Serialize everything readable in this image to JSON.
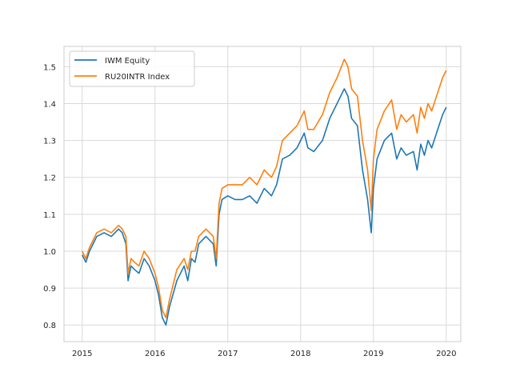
{
  "chart_data": {
    "type": "line",
    "title": "",
    "xlabel": "",
    "ylabel": "",
    "xlim": [
      2014.75,
      2020.2
    ],
    "ylim": [
      0.755,
      1.555
    ],
    "grid": true,
    "legend_position": "upper-left",
    "x_ticks": [
      {
        "value": 2015,
        "label": "2015"
      },
      {
        "value": 2016,
        "label": "2016"
      },
      {
        "value": 2017,
        "label": "2017"
      },
      {
        "value": 2018,
        "label": "2018"
      },
      {
        "value": 2019,
        "label": "2019"
      },
      {
        "value": 2020,
        "label": "2020"
      }
    ],
    "y_ticks": [
      {
        "value": 0.8,
        "label": "0.8"
      },
      {
        "value": 0.9,
        "label": "0.9"
      },
      {
        "value": 1.0,
        "label": "1.0"
      },
      {
        "value": 1.1,
        "label": "1.1"
      },
      {
        "value": 1.2,
        "label": "1.2"
      },
      {
        "value": 1.3,
        "label": "1.3"
      },
      {
        "value": 1.4,
        "label": "1.4"
      },
      {
        "value": 1.5,
        "label": "1.5"
      }
    ],
    "series": [
      {
        "name": "IWM Equity",
        "color": "#1f77b4",
        "x": [
          2015.0,
          2015.05,
          2015.1,
          2015.2,
          2015.3,
          2015.4,
          2015.5,
          2015.55,
          2015.6,
          2015.63,
          2015.67,
          2015.72,
          2015.78,
          2015.85,
          2015.92,
          2016.0,
          2016.05,
          2016.1,
          2016.15,
          2016.2,
          2016.3,
          2016.4,
          2016.45,
          2016.5,
          2016.55,
          2016.6,
          2016.7,
          2016.8,
          2016.84,
          2016.88,
          2016.92,
          2017.0,
          2017.1,
          2017.2,
          2017.3,
          2017.4,
          2017.5,
          2017.6,
          2017.67,
          2017.75,
          2017.85,
          2017.95,
          2018.05,
          2018.1,
          2018.18,
          2018.3,
          2018.4,
          2018.5,
          2018.6,
          2018.65,
          2018.7,
          2018.78,
          2018.85,
          2018.92,
          2018.97,
          2019.0,
          2019.05,
          2019.15,
          2019.25,
          2019.32,
          2019.38,
          2019.45,
          2019.55,
          2019.6,
          2019.65,
          2019.7,
          2019.75,
          2019.8,
          2019.85,
          2019.9,
          2019.95,
          2020.0
        ],
        "values": [
          0.99,
          0.97,
          1.0,
          1.04,
          1.05,
          1.04,
          1.06,
          1.05,
          1.02,
          0.92,
          0.96,
          0.95,
          0.94,
          0.98,
          0.96,
          0.92,
          0.88,
          0.82,
          0.8,
          0.85,
          0.92,
          0.96,
          0.92,
          0.98,
          0.97,
          1.02,
          1.04,
          1.02,
          0.96,
          1.1,
          1.14,
          1.15,
          1.14,
          1.14,
          1.15,
          1.13,
          1.17,
          1.15,
          1.18,
          1.25,
          1.26,
          1.28,
          1.32,
          1.28,
          1.27,
          1.3,
          1.36,
          1.4,
          1.44,
          1.42,
          1.36,
          1.34,
          1.22,
          1.14,
          1.05,
          1.17,
          1.25,
          1.3,
          1.32,
          1.25,
          1.28,
          1.26,
          1.27,
          1.22,
          1.29,
          1.26,
          1.3,
          1.28,
          1.31,
          1.34,
          1.37,
          1.39
        ]
      },
      {
        "name": "RU20INTR Index",
        "color": "#ff7f0e",
        "x": [
          2015.0,
          2015.05,
          2015.1,
          2015.2,
          2015.3,
          2015.4,
          2015.5,
          2015.55,
          2015.6,
          2015.63,
          2015.67,
          2015.72,
          2015.78,
          2015.85,
          2015.92,
          2016.0,
          2016.05,
          2016.1,
          2016.15,
          2016.2,
          2016.3,
          2016.4,
          2016.45,
          2016.5,
          2016.55,
          2016.6,
          2016.7,
          2016.8,
          2016.84,
          2016.88,
          2016.92,
          2017.0,
          2017.1,
          2017.2,
          2017.3,
          2017.4,
          2017.5,
          2017.6,
          2017.67,
          2017.75,
          2017.85,
          2017.95,
          2018.05,
          2018.1,
          2018.18,
          2018.3,
          2018.4,
          2018.5,
          2018.6,
          2018.65,
          2018.7,
          2018.78,
          2018.85,
          2018.92,
          2018.97,
          2019.0,
          2019.05,
          2019.15,
          2019.25,
          2019.32,
          2019.38,
          2019.45,
          2019.55,
          2019.6,
          2019.65,
          2019.7,
          2019.75,
          2019.8,
          2019.85,
          2019.9,
          2019.95,
          2020.0
        ],
        "values": [
          1.0,
          0.98,
          1.01,
          1.05,
          1.06,
          1.05,
          1.07,
          1.06,
          1.04,
          0.94,
          0.98,
          0.97,
          0.96,
          1.0,
          0.98,
          0.94,
          0.9,
          0.84,
          0.82,
          0.87,
          0.95,
          0.98,
          0.95,
          1.0,
          1.0,
          1.04,
          1.06,
          1.04,
          0.98,
          1.13,
          1.17,
          1.18,
          1.18,
          1.18,
          1.2,
          1.18,
          1.22,
          1.2,
          1.23,
          1.3,
          1.32,
          1.34,
          1.38,
          1.33,
          1.33,
          1.37,
          1.43,
          1.47,
          1.52,
          1.5,
          1.44,
          1.42,
          1.3,
          1.22,
          1.11,
          1.25,
          1.33,
          1.38,
          1.41,
          1.33,
          1.37,
          1.35,
          1.37,
          1.32,
          1.39,
          1.36,
          1.4,
          1.38,
          1.41,
          1.44,
          1.47,
          1.49
        ]
      }
    ]
  }
}
